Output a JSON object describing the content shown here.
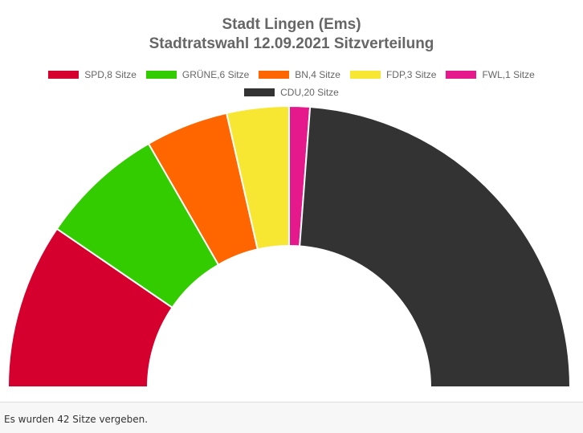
{
  "chart_data": {
    "type": "pie",
    "subtype": "semicircle-parliament",
    "title": "Stadt Lingen (Ems)",
    "subtitle": "Stadtratswahl 12.09.2021 Sitzverteilung",
    "legend_position": "top",
    "series": [
      {
        "name": "SPD",
        "label": "SPD,8 Sitze",
        "value": 8,
        "color": "#d5002d"
      },
      {
        "name": "GRÜNE",
        "label": "GRÜNE,6 Sitze",
        "value": 6,
        "color": "#33cc00"
      },
      {
        "name": "BN",
        "label": "BN,4 Sitze",
        "value": 4,
        "color": "#ff6600"
      },
      {
        "name": "FDP",
        "label": "FDP,3 Sitze",
        "value": 3,
        "color": "#f7e733"
      },
      {
        "name": "FWL",
        "label": "FWL,1 Sitze",
        "value": 1,
        "color": "#e6198c"
      },
      {
        "name": "CDU",
        "label": "CDU,20 Sitze",
        "value": 20,
        "color": "#333333"
      }
    ],
    "total": 42
  },
  "footer": {
    "text": "Es wurden 42 Sitze vergeben."
  }
}
